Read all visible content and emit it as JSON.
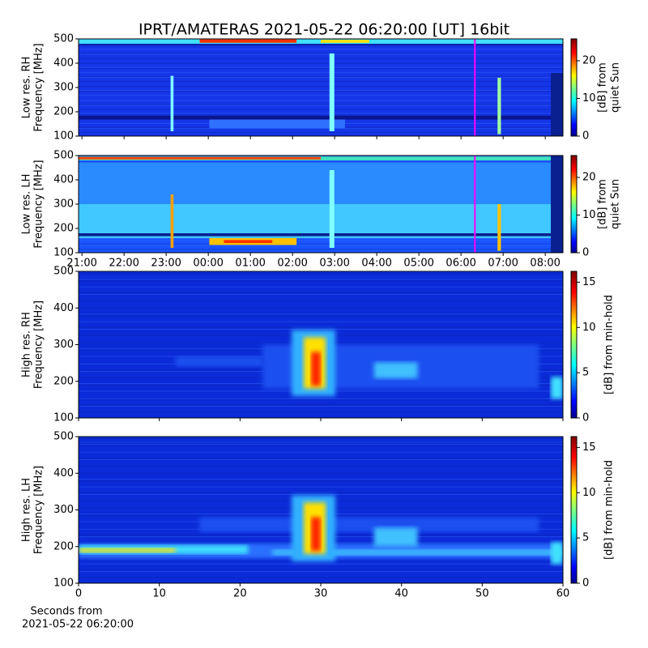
{
  "title": "IPRT/AMATERAS 2021-05-22 06:20:00 [UT]   16bit",
  "chart_data": [
    {
      "type": "heatmap",
      "ylabel": [
        "Low res. RH",
        "Frequency [MHz]"
      ],
      "xlim": [
        20.92,
        32.42
      ],
      "ylim": [
        100,
        500
      ],
      "yticks": [
        100,
        200,
        300,
        400,
        500
      ],
      "vline": {
        "x": 30.33,
        "color": "#ff00ff"
      },
      "colorbar": {
        "label": [
          "[dB] from",
          "quiet Sun"
        ],
        "lim": [
          0,
          25.8
        ],
        "ticks": [
          0,
          10,
          20
        ]
      }
    },
    {
      "type": "heatmap",
      "ylabel": [
        "Low res. LH",
        "Frequency [MHz]"
      ],
      "xlim": [
        20.92,
        32.42
      ],
      "ylim": [
        100,
        500
      ],
      "yticks": [
        100,
        200,
        300,
        400,
        500
      ],
      "xticks": [
        {
          "value": 21,
          "label": "21:00"
        },
        {
          "value": 22,
          "label": "22:00"
        },
        {
          "value": 23,
          "label": "23:00"
        },
        {
          "value": 24,
          "label": "00:00"
        },
        {
          "value": 25,
          "label": "01:00"
        },
        {
          "value": 26,
          "label": "02:00"
        },
        {
          "value": 27,
          "label": "03:00"
        },
        {
          "value": 28,
          "label": "04:00"
        },
        {
          "value": 29,
          "label": "05:00"
        },
        {
          "value": 30,
          "label": "06:00"
        },
        {
          "value": 31,
          "label": "07:00"
        },
        {
          "value": 32,
          "label": "08:00"
        }
      ],
      "vline": {
        "x": 30.33,
        "color": "#ff00ff"
      },
      "colorbar": {
        "label": [
          "[dB] from",
          "quiet Sun"
        ],
        "lim": [
          0,
          25.8
        ],
        "ticks": [
          0,
          10,
          20
        ]
      }
    },
    {
      "type": "heatmap",
      "ylabel": [
        "High res. RH",
        "Frequency [MHz]"
      ],
      "xlim": [
        0,
        60
      ],
      "ylim": [
        100,
        500
      ],
      "yticks": [
        100,
        200,
        300,
        400,
        500
      ],
      "colorbar": {
        "label": [
          "[dB] from min-hold"
        ],
        "lim": [
          0,
          16.2
        ],
        "ticks": [
          0,
          5,
          10,
          15
        ]
      }
    },
    {
      "type": "heatmap",
      "ylabel": [
        "High res. LH",
        "Frequency [MHz]"
      ],
      "xlim": [
        0,
        60
      ],
      "ylim": [
        100,
        500
      ],
      "yticks": [
        100,
        200,
        300,
        400,
        500
      ],
      "xticks": [
        0,
        10,
        20,
        30,
        40,
        50,
        60
      ],
      "xlabel": [
        "Seconds from",
        "2021-05-22 06:20:00"
      ],
      "colorbar": {
        "label": [
          "[dB] from min-hold"
        ],
        "lim": [
          0,
          16.2
        ],
        "ticks": [
          0,
          5,
          10,
          15
        ]
      }
    }
  ]
}
